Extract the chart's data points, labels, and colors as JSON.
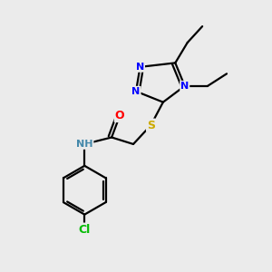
{
  "bg_color": "#ebebeb",
  "atom_colors": {
    "N": "#0000ff",
    "S": "#ccaa00",
    "O": "#ff0000",
    "Cl": "#00bb00",
    "C": "#000000",
    "H": "#4488aa"
  },
  "figsize": [
    3.0,
    3.0
  ],
  "dpi": 100
}
